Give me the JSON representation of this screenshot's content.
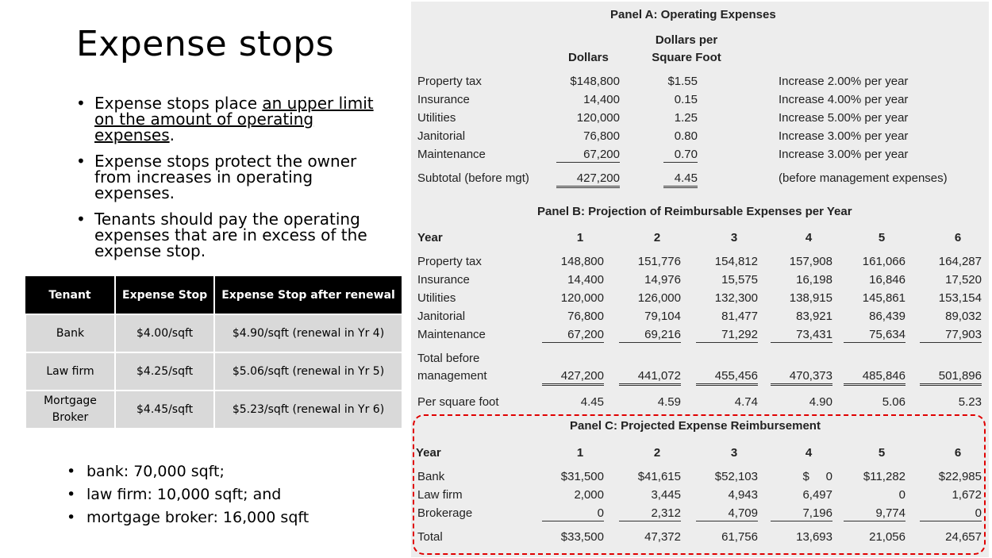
{
  "slide": {
    "title": "Expense stops",
    "bullets": {
      "b1_a": "Expense stops place ",
      "b1_u": "an upper limit on the amount of operating expenses",
      "b1_b": ".",
      "b2": "Expense stops protect the owner from increases in operating expenses.",
      "b3": "Tenants should pay the operating expenses that are in excess of the expense stop."
    },
    "table": {
      "headers": [
        "Tenant",
        "Expense Stop",
        "Expense Stop after renewal"
      ],
      "rows": [
        [
          "Bank",
          "$4.00/sqft",
          "$4.90/sqft (renewal in Yr 4)"
        ],
        [
          "Law firm",
          "$4.25/sqft",
          "$5.06/sqft (renewal in Yr 5)"
        ],
        [
          "Mortgage Broker",
          "$4.45/sqft",
          "$5.23/sqft (renewal in Yr 6)"
        ]
      ]
    },
    "sqft": [
      "bank: 70,000 sqft;",
      "law firm: 10,000 sqft; and",
      "mortgage broker: 16,000 sqft"
    ]
  },
  "panelA": {
    "title": "Panel A: Operating Expenses",
    "col_dollars": "Dollars",
    "col_psf_1": "Dollars per",
    "col_psf_2": "Square Foot",
    "rows": [
      {
        "label": "Property tax",
        "dollars": "$148,800",
        "psf": "$1.55",
        "note": "Increase 2.00% per year"
      },
      {
        "label": "Insurance",
        "dollars": "14,400",
        "psf": "0.15",
        "note": "Increase 4.00% per year"
      },
      {
        "label": "Utilities",
        "dollars": "120,000",
        "psf": "1.25",
        "note": "Increase 5.00% per year"
      },
      {
        "label": "Janitorial",
        "dollars": "76,800",
        "psf": "0.80",
        "note": "Increase 3.00% per year"
      },
      {
        "label": "Maintenance",
        "dollars": "67,200",
        "psf": "0.70",
        "note": "Increase 3.00% per year"
      }
    ],
    "subtotal": {
      "label": "Subtotal (before mgt)",
      "dollars": "427,200",
      "psf": "4.45",
      "note": "(before management expenses)"
    }
  },
  "panelB": {
    "title": "Panel B: Projection of Reimbursable Expenses per Year",
    "year_label": "Year",
    "years": [
      "1",
      "2",
      "3",
      "4",
      "5",
      "6"
    ],
    "rows": [
      {
        "label": "Property tax",
        "values": [
          "148,800",
          "151,776",
          "154,812",
          "157,908",
          "161,066",
          "164,287"
        ]
      },
      {
        "label": "Insurance",
        "values": [
          "14,400",
          "14,976",
          "15,575",
          "16,198",
          "16,846",
          "17,520"
        ]
      },
      {
        "label": "Utilities",
        "values": [
          "120,000",
          "126,000",
          "132,300",
          "138,915",
          "145,861",
          "153,154"
        ]
      },
      {
        "label": "Janitorial",
        "values": [
          "76,800",
          "79,104",
          "81,477",
          "83,921",
          "86,439",
          "89,032"
        ]
      },
      {
        "label": "Maintenance",
        "values": [
          "67,200",
          "69,216",
          "71,292",
          "73,431",
          "75,634",
          "77,903"
        ]
      }
    ],
    "total_label_1": "Total before",
    "total_label_2": "management",
    "total_values": [
      "427,200",
      "441,072",
      "455,456",
      "470,373",
      "485,846",
      "501,896"
    ],
    "psf_label": "Per square foot",
    "psf_values": [
      "4.45",
      "4.59",
      "4.74",
      "4.90",
      "5.06",
      "5.23"
    ]
  },
  "panelC": {
    "title": "Panel C: Projected Expense Reimbursement",
    "year_label": "Year",
    "years": [
      "1",
      "2",
      "3",
      "4",
      "5",
      "6"
    ],
    "rows": [
      {
        "label": "Bank",
        "values": [
          "$31,500",
          "$41,615",
          "$52,103",
          "$     0",
          "$11,282",
          "$22,985"
        ]
      },
      {
        "label": "Law firm",
        "values": [
          "2,000",
          "3,445",
          "4,943",
          "6,497",
          "0",
          "1,672"
        ]
      },
      {
        "label": "Brokerage",
        "values": [
          "0",
          "2,312",
          "4,709",
          "7,196",
          "9,774",
          "0"
        ]
      }
    ],
    "total_label": "Total",
    "total_values": [
      "$33,500",
      "47,372",
      "61,756",
      "13,693",
      "21,056",
      "24,657"
    ]
  },
  "colors": {
    "table_header": "#000000",
    "table_cell": "#d9d9d9",
    "panel_bg": "#ededed",
    "highlight_border": "#e00000"
  }
}
